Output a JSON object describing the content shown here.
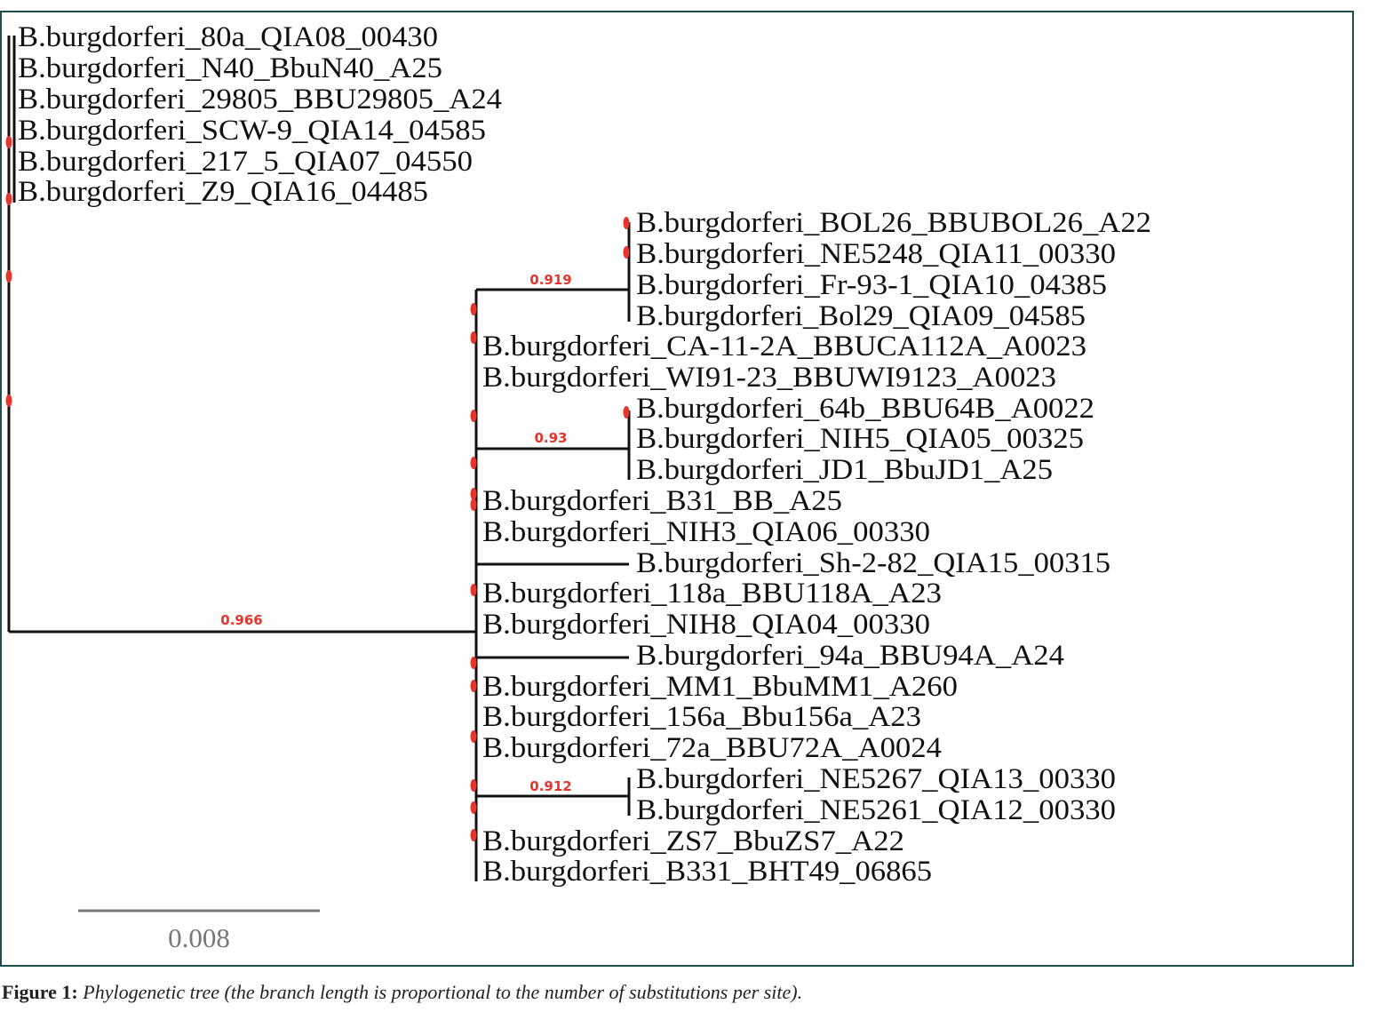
{
  "leaves": {
    "l80a": "B.burgdorferi_80a_QIA08_00430",
    "lN40": "B.burgdorferi_N40_BbuN40_A25",
    "l29805": "B.burgdorferi_29805_BBU29805_A24",
    "lSCW9": "B.burgdorferi_SCW-9_QIA14_04585",
    "l217": "B.burgdorferi_217_5_QIA07_04550",
    "lZ9": "B.burgdorferi_Z9_QIA16_04485",
    "lBOL26": "B.burgdorferi_BOL26_BBUBOL26_A22",
    "lNE5248": "B.burgdorferi_NE5248_QIA11_00330",
    "lFr93": "B.burgdorferi_Fr-93-1_QIA10_04385",
    "lBol29": "B.burgdorferi_Bol29_QIA09_04585",
    "lCA11": "B.burgdorferi_CA-11-2A_BBUCA112A_A0023",
    "lWI91": "B.burgdorferi_WI91-23_BBUWI9123_A0023",
    "l64b": "B.burgdorferi_64b_BBU64B_A0022",
    "lNIH5": "B.burgdorferi_NIH5_QIA05_00325",
    "lJD1": "B.burgdorferi_JD1_BbuJD1_A25",
    "lB31": "B.burgdorferi_B31_BB_A25",
    "lNIH3": "B.burgdorferi_NIH3_QIA06_00330",
    "lSh2": "B.burgdorferi_Sh-2-82_QIA15_00315",
    "l118a": "B.burgdorferi_118a_BBU118A_A23",
    "lNIH8": "B.burgdorferi_NIH8_QIA04_00330",
    "l94a": "B.burgdorferi_94a_BBU94A_A24",
    "lMM1": "B.burgdorferi_MM1_BbuMM1_A260",
    "l156a": "B.burgdorferi_156a_Bbu156a_A23",
    "l72a": "B.burgdorferi_72a_BBU72A_A0024",
    "lNE5267": "B.burgdorferi_NE5267_QIA13_00330",
    "lNE5261": "B.burgdorferi_NE5261_QIA12_00330",
    "lZS7": "B.burgdorferi_ZS7_BbuZS7_A22",
    "lB331": "B.burgdorferi_B331_BHT49_06865"
  },
  "supports": {
    "main": "0.966",
    "clade_bol": "0.919",
    "clade_64b": "0.93",
    "clade_ne52": "0.912"
  },
  "scale_bar": {
    "label": "0.008"
  },
  "caption": {
    "label": "Figure 1:",
    "text": "Phylogenetic tree (the branch length is proportional to the number of substitutions per site)."
  },
  "colors": {
    "branch": "#111111",
    "support": "#e8352b",
    "node_marker": "#e8352b",
    "scale_bar": "#777777",
    "frame": "#1f4e4e"
  }
}
